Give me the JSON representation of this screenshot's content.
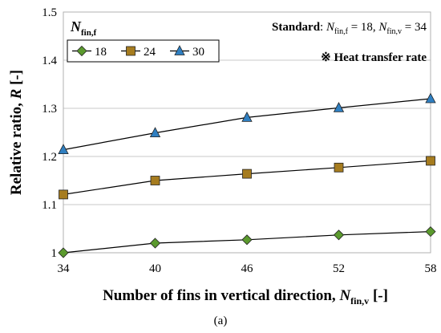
{
  "chart_data": {
    "type": "line",
    "x": [
      34,
      40,
      46,
      52,
      58
    ],
    "xlim": [
      34,
      58
    ],
    "ylim": [
      1.0,
      1.5
    ],
    "yticks": [
      "1",
      "1.1",
      "1.2",
      "1.3",
      "1.4",
      "1.5"
    ],
    "xticks": [
      "34",
      "40",
      "46",
      "52",
      "58"
    ],
    "grid": "horizontal",
    "legend_title": {
      "main": "N",
      "sub": "fin,f"
    },
    "legend_placement": "top-left",
    "series": [
      {
        "name": "18",
        "marker": "diamond",
        "color": "#5b9a2e",
        "values": [
          1.0,
          1.02,
          1.027,
          1.037,
          1.044
        ]
      },
      {
        "name": "24",
        "marker": "square",
        "color": "#a67c1f",
        "values": [
          1.121,
          1.15,
          1.164,
          1.177,
          1.191
        ]
      },
      {
        "name": "30",
        "marker": "triangle",
        "color": "#2f7fc1",
        "values": [
          1.214,
          1.249,
          1.281,
          1.301,
          1.32
        ]
      }
    ],
    "xlabel": {
      "main": "Number of fins in vertical direction, ",
      "sym": "N",
      "sub": "fin,v",
      "tail": " [-]"
    },
    "ylabel": {
      "main": "Relative ratio, ",
      "sym": "R",
      "tail": " [-]"
    },
    "annotations": {
      "standard_bold": "Standard",
      "standard_colon": ": ",
      "sym1": "N",
      "sub1": "fin,f",
      "val1": " = 18, ",
      "sym2": "N",
      "sub2": "fin,v",
      "val2": " = 34",
      "note": "※ Heat transfer rate"
    },
    "caption": "(a)"
  }
}
